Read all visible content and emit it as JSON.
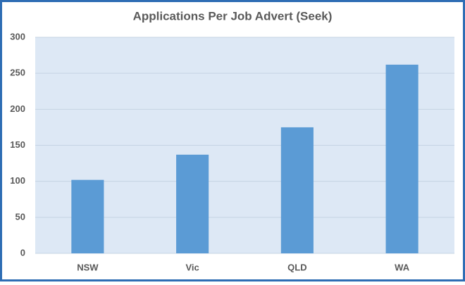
{
  "chart_data": {
    "type": "bar",
    "title": "Applications Per Job Advert (Seek)",
    "categories": [
      "NSW",
      "Vic",
      "QLD",
      "WA"
    ],
    "values": [
      102,
      137,
      175,
      262
    ],
    "color": "#5b9bd5",
    "ylim": [
      0,
      300
    ],
    "yticks": [
      0,
      50,
      100,
      150,
      200,
      250,
      300
    ],
    "grid": true
  }
}
